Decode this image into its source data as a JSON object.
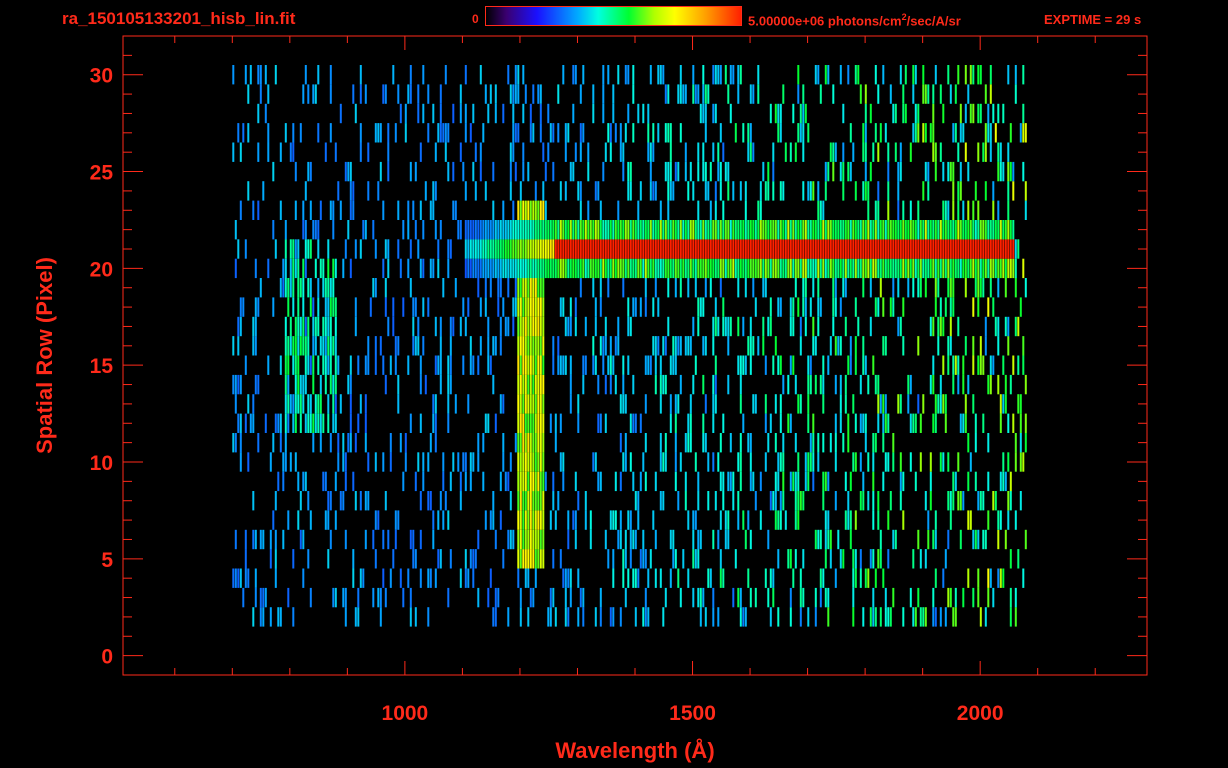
{
  "header": {
    "title": "ra_150105133201_hisb_lin.fit",
    "colorbar_min": "0",
    "colorbar_max_value": "5.00000e+06 photons/cm",
    "colorbar_max_exp": "2",
    "colorbar_max_unit": "/sec/A/sr",
    "exptime": "EXPTIME = 29 s"
  },
  "chart_data": {
    "type": "heatmap",
    "xlabel": "Wavelength (Å)",
    "ylabel": "Spatial Row (Pixel)",
    "xlim": [
      510,
      2290
    ],
    "ylim": [
      -1,
      32
    ],
    "x_ticks": [
      1000,
      1500,
      2000
    ],
    "y_ticks": [
      0,
      5,
      10,
      15,
      20,
      25,
      30
    ],
    "colorbar_range": [
      0,
      5000000
    ],
    "colors": {
      "axis": "#ff2a1a",
      "background": "#000000"
    },
    "features": [
      {
        "name": "bright band",
        "x_range": [
          1260,
          2060
        ],
        "rows": [
          20,
          22
        ],
        "level": 1.0
      },
      {
        "name": "vertical line",
        "x_range": [
          1195,
          1240
        ],
        "rows": [
          5,
          23
        ],
        "level": 0.65
      },
      {
        "name": "arc emission",
        "x_range": [
          790,
          880
        ],
        "rows": [
          12,
          21
        ],
        "level": 0.45
      },
      {
        "name": "noise",
        "x_range": [
          700,
          2080
        ],
        "rows": [
          2,
          30
        ],
        "level": 0.35
      }
    ]
  }
}
